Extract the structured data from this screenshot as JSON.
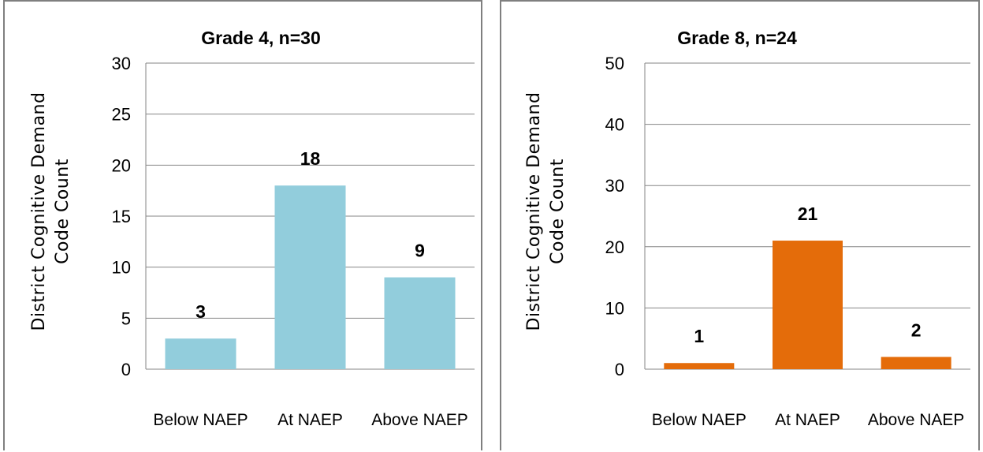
{
  "chart_data": [
    {
      "type": "bar",
      "title": "Grade 4, n=30",
      "ylabel": [
        "District Cognitive Demand",
        "Code Count"
      ],
      "xlabel": "",
      "categories": [
        "Below NAEP",
        "At NAEP",
        "Above NAEP"
      ],
      "values": [
        3,
        18,
        9
      ],
      "ylim": [
        0,
        30
      ],
      "yticks": [
        0,
        5,
        10,
        15,
        20,
        25,
        30
      ],
      "grid": true,
      "legend": "none",
      "colors": {
        "bar": "#92cddc"
      }
    },
    {
      "type": "bar",
      "title": "Grade 8, n=24",
      "ylabel": [
        "District Cognitive Demand",
        "Code Count"
      ],
      "xlabel": "",
      "categories": [
        "Below NAEP",
        "At NAEP",
        "Above NAEP"
      ],
      "values": [
        1,
        21,
        2
      ],
      "ylim": [
        0,
        50
      ],
      "yticks": [
        0,
        10,
        20,
        30,
        40,
        50
      ],
      "grid": true,
      "legend": "none",
      "colors": {
        "bar": "#e46c0a"
      }
    }
  ]
}
